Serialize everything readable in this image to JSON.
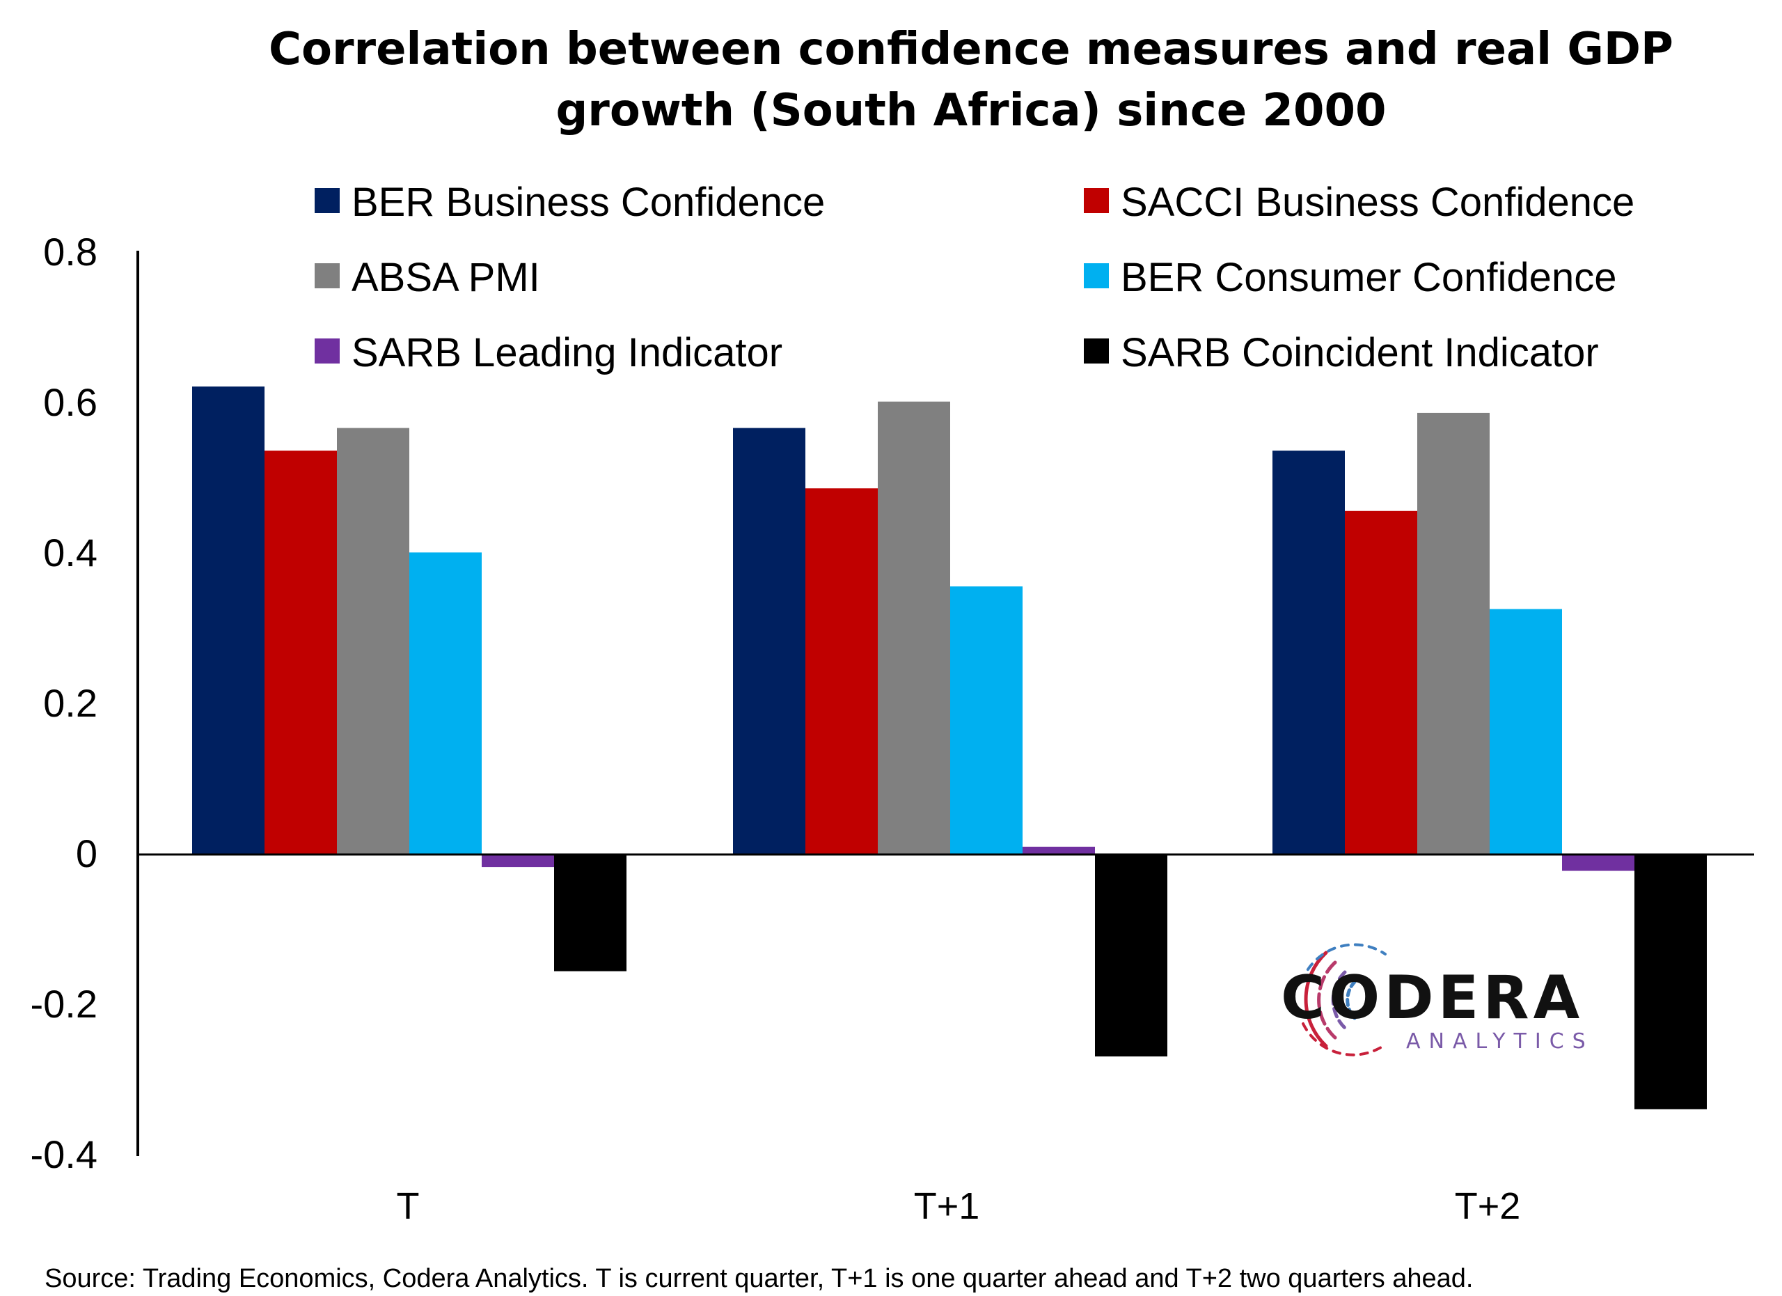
{
  "chart_data": {
    "type": "bar",
    "title_lines": [
      "Correlation between confidence measures and real GDP",
      "growth (South Africa) since 2000"
    ],
    "categories": [
      "T",
      "T+1",
      "T+2"
    ],
    "series": [
      {
        "name": "BER Business Confidence",
        "color": "#002060",
        "values": [
          0.62,
          0.565,
          0.535
        ]
      },
      {
        "name": "SACCI Business Confidence",
        "color": "#c00000",
        "values": [
          0.535,
          0.485,
          0.455
        ]
      },
      {
        "name": "ABSA PMI",
        "color": "#808080",
        "values": [
          0.565,
          0.6,
          0.585
        ]
      },
      {
        "name": "BER Consumer Confidence",
        "color": "#00b0f0",
        "values": [
          0.4,
          0.355,
          0.325
        ]
      },
      {
        "name": "SARB Leading Indicator",
        "color": "#7030a0",
        "values": [
          -0.017,
          0.01,
          -0.022
        ]
      },
      {
        "name": "SARB Coincident Indicator",
        "color": "#000000",
        "values": [
          -0.155,
          -0.268,
          -0.338
        ]
      }
    ],
    "y_ticks": [
      "0.8",
      "0.6",
      "0.4",
      "0.2",
      "0",
      "-0.2",
      "-0.4"
    ],
    "ylim": [
      -0.4,
      0.8
    ],
    "grid": false,
    "legend_position": "top",
    "source": "Source: Trading Economics, Codera Analytics. T is current quarter, T+1 is one quarter ahead and T+2 two quarters ahead."
  },
  "logo": {
    "name": "CODERA",
    "tagline": "ANALYTICS"
  }
}
